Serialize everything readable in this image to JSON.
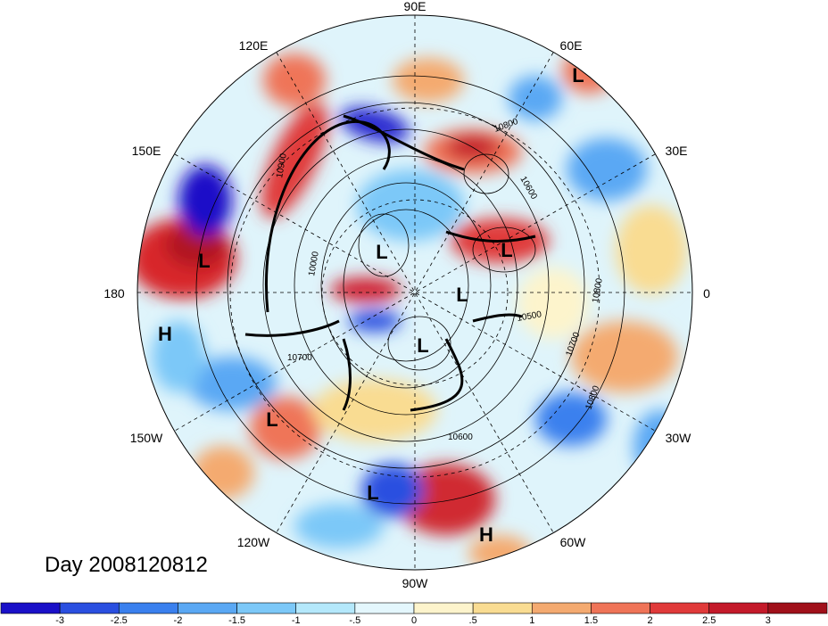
{
  "title_text": "Day 2008120812",
  "longitude_labels": [
    "90E",
    "120E",
    "60E",
    "150E",
    "30E",
    "180",
    "0",
    "150W",
    "30W",
    "120W",
    "60W",
    "90W"
  ],
  "pressure_systems": [
    "L",
    "L",
    "L",
    "L",
    "L",
    "L",
    "L",
    "L",
    "H",
    "H"
  ],
  "contour_labels": [
    "10800",
    "10600",
    "10900",
    "10000",
    "10500",
    "10700",
    "10800",
    "10800",
    "10700",
    "10600"
  ],
  "colorbar": {
    "ticks": [
      "-3",
      "-2.5",
      "-2",
      "-1.5",
      "-1",
      "-.5",
      "0",
      ".5",
      "1",
      "1.5",
      "2",
      "2.5",
      "3"
    ],
    "colors": [
      "#1a10c8",
      "#2a4fe0",
      "#3a80ee",
      "#5aa8f4",
      "#7cc8f8",
      "#b4e8fb",
      "#e4f7fd",
      "#fdf4cc",
      "#f9dc92",
      "#f4aa70",
      "#ef7458",
      "#e03a3a",
      "#c41a2a",
      "#a0101a"
    ]
  }
}
